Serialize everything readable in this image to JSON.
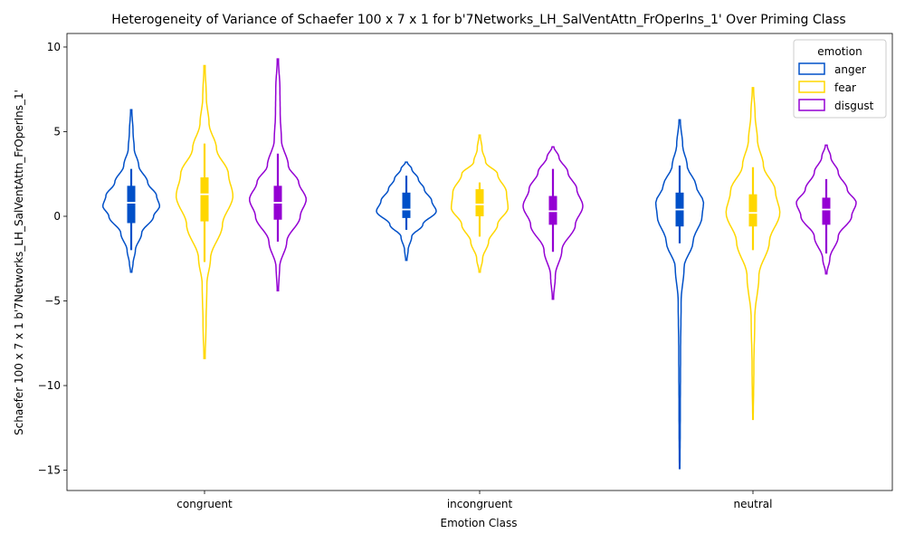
{
  "chart_data": {
    "type": "violin",
    "title": "Heterogeneity of Variance of Schaefer 100 x 7 x 1 for b'7Networks_LH_SalVentAttn_FrOperIns_1' Over Priming Class",
    "xlabel": "Emotion Class",
    "ylabel": "Schaefer 100 x 7 x 1 b'7Networks_LH_SalVentAttn_FrOperIns_1'",
    "categories": [
      "congruent",
      "incongruent",
      "neutral"
    ],
    "ylim": [
      -16.2,
      10.8
    ],
    "yticks": [
      -15,
      -10,
      -5,
      0,
      5,
      10
    ],
    "ytick_labels": [
      "−15",
      "−10",
      "−5",
      "0",
      "5",
      "10"
    ],
    "legend": {
      "title": "emotion",
      "position": "top-right"
    },
    "series": [
      {
        "name": "anger",
        "color": "#0050c8",
        "violins": [
          {
            "min": -3.3,
            "max": 6.3,
            "q1": -0.4,
            "median": 0.8,
            "q3": 1.8,
            "whisker_low": -2.0,
            "whisker_high": 2.8,
            "profile": [
              [
                -3.3,
                0.02
              ],
              [
                -2.8,
                0.06
              ],
              [
                -2.0,
                0.14
              ],
              [
                -1.0,
                0.35
              ],
              [
                0.0,
                0.75
              ],
              [
                0.6,
                0.95
              ],
              [
                1.2,
                0.85
              ],
              [
                2.0,
                0.55
              ],
              [
                3.0,
                0.25
              ],
              [
                4.0,
                0.1
              ],
              [
                5.0,
                0.06
              ],
              [
                6.3,
                0.02
              ]
            ]
          },
          {
            "min": -2.6,
            "max": 3.2,
            "q1": -0.1,
            "median": 0.4,
            "q3": 1.4,
            "whisker_low": -0.8,
            "whisker_high": 2.4,
            "profile": [
              [
                -2.6,
                0.02
              ],
              [
                -2.0,
                0.06
              ],
              [
                -1.2,
                0.18
              ],
              [
                -0.5,
                0.55
              ],
              [
                0.3,
                1.0
              ],
              [
                0.9,
                0.85
              ],
              [
                1.6,
                0.6
              ],
              [
                2.2,
                0.4
              ],
              [
                2.8,
                0.18
              ],
              [
                3.2,
                0.03
              ]
            ]
          },
          {
            "min": -14.9,
            "max": 5.7,
            "q1": -0.6,
            "median": 0.4,
            "q3": 1.4,
            "whisker_low": -1.6,
            "whisker_high": 3.0,
            "profile": [
              [
                -14.9,
                0.01
              ],
              [
                -12.0,
                0.02
              ],
              [
                -8.0,
                0.03
              ],
              [
                -5.0,
                0.05
              ],
              [
                -3.0,
                0.15
              ],
              [
                -1.5,
                0.45
              ],
              [
                0.0,
                0.75
              ],
              [
                0.8,
                0.8
              ],
              [
                1.8,
                0.55
              ],
              [
                3.0,
                0.25
              ],
              [
                4.2,
                0.1
              ],
              [
                5.7,
                0.02
              ]
            ]
          }
        ]
      },
      {
        "name": "fear",
        "color": "#ffd700",
        "violins": [
          {
            "min": -8.4,
            "max": 8.9,
            "q1": -0.3,
            "median": 1.3,
            "q3": 2.3,
            "whisker_low": -2.7,
            "whisker_high": 4.3,
            "profile": [
              [
                -8.4,
                0.02
              ],
              [
                -6.5,
                0.05
              ],
              [
                -4.0,
                0.08
              ],
              [
                -2.5,
                0.2
              ],
              [
                -0.5,
                0.6
              ],
              [
                1.2,
                0.95
              ],
              [
                2.5,
                0.8
              ],
              [
                4.0,
                0.4
              ],
              [
                5.5,
                0.15
              ],
              [
                7.0,
                0.06
              ],
              [
                8.9,
                0.02
              ]
            ]
          },
          {
            "min": -3.3,
            "max": 4.8,
            "q1": 0.0,
            "median": 0.7,
            "q3": 1.6,
            "whisker_low": -1.2,
            "whisker_high": 2.0,
            "profile": [
              [
                -3.3,
                0.02
              ],
              [
                -2.5,
                0.1
              ],
              [
                -1.5,
                0.3
              ],
              [
                -0.5,
                0.6
              ],
              [
                0.5,
                0.95
              ],
              [
                1.4,
                0.9
              ],
              [
                2.5,
                0.6
              ],
              [
                3.2,
                0.2
              ],
              [
                4.0,
                0.08
              ],
              [
                4.8,
                0.02
              ]
            ]
          },
          {
            "min": -12.0,
            "max": 7.6,
            "q1": -0.6,
            "median": 0.2,
            "q3": 1.3,
            "whisker_low": -2.0,
            "whisker_high": 2.9,
            "profile": [
              [
                -12.0,
                0.01
              ],
              [
                -9.0,
                0.03
              ],
              [
                -6.0,
                0.06
              ],
              [
                -3.5,
                0.2
              ],
              [
                -1.5,
                0.55
              ],
              [
                0.2,
                0.9
              ],
              [
                1.5,
                0.75
              ],
              [
                3.0,
                0.35
              ],
              [
                4.5,
                0.15
              ],
              [
                6.0,
                0.07
              ],
              [
                7.6,
                0.02
              ]
            ]
          }
        ]
      },
      {
        "name": "disgust",
        "color": "#9400d3",
        "violins": [
          {
            "min": -4.4,
            "max": 9.3,
            "q1": -0.2,
            "median": 0.8,
            "q3": 1.8,
            "whisker_low": -1.5,
            "whisker_high": 3.7,
            "profile": [
              [
                -4.4,
                0.02
              ],
              [
                -3.0,
                0.06
              ],
              [
                -1.5,
                0.3
              ],
              [
                0.0,
                0.75
              ],
              [
                1.0,
                0.95
              ],
              [
                2.0,
                0.7
              ],
              [
                3.0,
                0.35
              ],
              [
                4.5,
                0.12
              ],
              [
                6.0,
                0.08
              ],
              [
                7.5,
                0.07
              ],
              [
                9.3,
                0.02
              ]
            ]
          },
          {
            "min": -4.9,
            "max": 4.1,
            "q1": -0.5,
            "median": 0.3,
            "q3": 1.2,
            "whisker_low": -2.1,
            "whisker_high": 2.8,
            "profile": [
              [
                -4.9,
                0.02
              ],
              [
                -3.5,
                0.08
              ],
              [
                -2.0,
                0.3
              ],
              [
                -0.5,
                0.75
              ],
              [
                0.6,
                1.0
              ],
              [
                1.6,
                0.8
              ],
              [
                2.6,
                0.5
              ],
              [
                3.5,
                0.2
              ],
              [
                4.1,
                0.03
              ]
            ]
          },
          {
            "min": -3.4,
            "max": 4.2,
            "q1": -0.5,
            "median": 0.4,
            "q3": 1.1,
            "whisker_low": -2.2,
            "whisker_high": 2.2,
            "profile": [
              [
                -3.4,
                0.02
              ],
              [
                -2.5,
                0.12
              ],
              [
                -1.2,
                0.4
              ],
              [
                0.0,
                0.85
              ],
              [
                0.8,
                1.0
              ],
              [
                1.6,
                0.7
              ],
              [
                2.6,
                0.4
              ],
              [
                3.5,
                0.15
              ],
              [
                4.2,
                0.03
              ]
            ]
          }
        ]
      }
    ]
  }
}
